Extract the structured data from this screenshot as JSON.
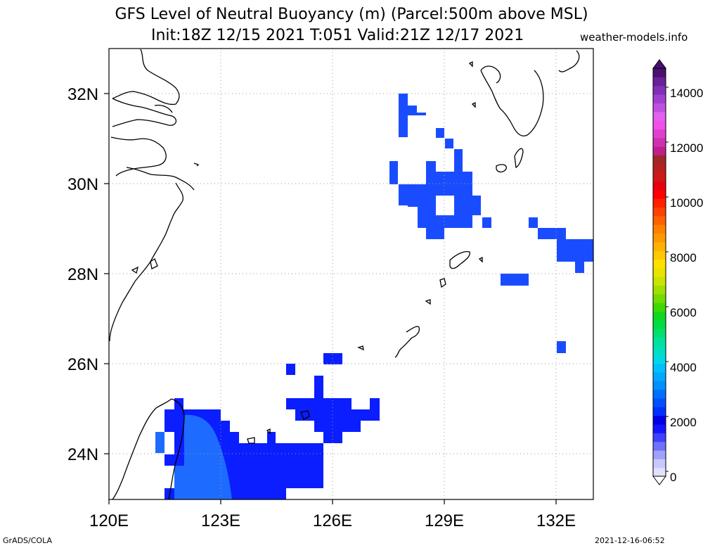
{
  "title": {
    "line1": "GFS Level of Neutral Buoyancy (m) (Parcel:500m above MSL)",
    "line2": "Init:18Z 12/15 2021 T:051 Valid:21Z 12/17 2021"
  },
  "site": "weather-models.info",
  "footer": {
    "left": "GrADS/COLA",
    "right": "2021-12-16-06:52"
  },
  "map": {
    "lon_labels": [
      "120E",
      "123E",
      "126E",
      "129E",
      "132E"
    ],
    "lat_labels": [
      "32N",
      "30N",
      "28N",
      "26N",
      "24N"
    ],
    "coastline_color": "#000000",
    "gridline_style": "dotted"
  },
  "colorbar": {
    "labels": [
      "14000",
      "12000",
      "10000",
      "8000",
      "6000",
      "4000",
      "2000",
      "0"
    ],
    "colors": [
      "#e0e0ff",
      "#c8c8ff",
      "#a0a0ff",
      "#7070ff",
      "#4040ff",
      "#1414ff",
      "#0000e6",
      "#0030ff",
      "#0050ff",
      "#0070ff",
      "#0090ff",
      "#00a8ff",
      "#00c0ff",
      "#00d8e8",
      "#00e0c0",
      "#00e0a0",
      "#00e070",
      "#00dd40",
      "#10d820",
      "#40d800",
      "#70dc00",
      "#a0e000",
      "#c8e400",
      "#e8e400",
      "#ffe000",
      "#ffc800",
      "#ffb000",
      "#ff9800",
      "#ff8000",
      "#ff6000",
      "#ff4000",
      "#ff2000",
      "#ff0000",
      "#e80010",
      "#d01818",
      "#b82020",
      "#a02828",
      "#c0208c",
      "#d030b0",
      "#e040d0",
      "#f050e8",
      "#e060f0",
      "#c050e0",
      "#a040d0",
      "#8030b8",
      "#6a2098",
      "#4a1070"
    ]
  }
}
